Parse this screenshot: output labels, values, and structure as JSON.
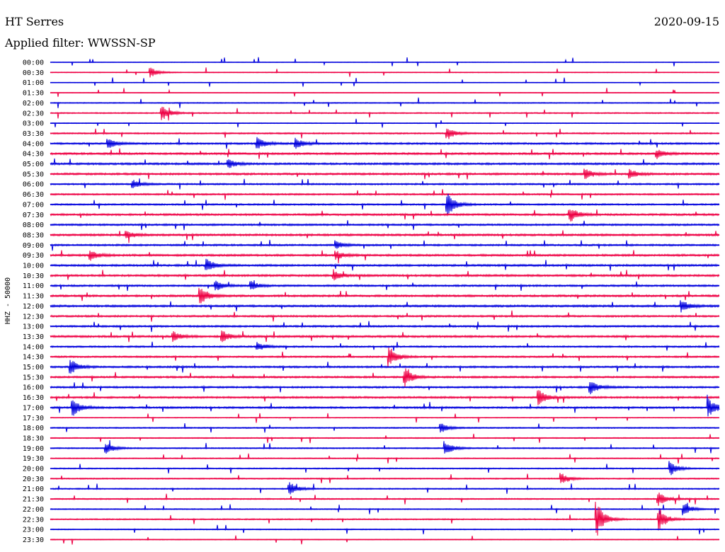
{
  "header": {
    "station": "HT Serres",
    "date": "2020-09-15",
    "filter": "Applied filter: WWSSN-SP"
  },
  "chart_data": {
    "type": "line",
    "title": "HT Serres",
    "subtitle": "Applied filter: WWSSN-SP",
    "ylabel": "HHZ - 50000",
    "xlabel": "",
    "grid": false,
    "legend": "none",
    "colors": [
      "#0000dd",
      "#ee0044"
    ],
    "row_labels": [
      "00:00",
      "00:30",
      "01:00",
      "01:30",
      "02:00",
      "02:30",
      "03:00",
      "03:30",
      "04:00",
      "04:30",
      "05:00",
      "05:30",
      "06:00",
      "06:30",
      "07:00",
      "07:30",
      "08:00",
      "08:30",
      "09:00",
      "09:30",
      "10:00",
      "10:30",
      "11:00",
      "11:30",
      "12:00",
      "12:30",
      "13:00",
      "13:30",
      "14:00",
      "14:30",
      "15:00",
      "15:30",
      "16:00",
      "16:30",
      "17:00",
      "17:30",
      "18:00",
      "18:30",
      "19:00",
      "19:30",
      "20:00",
      "20:30",
      "21:00",
      "21:30",
      "22:00",
      "22:30",
      "23:00",
      "23:30"
    ],
    "noise_level": [
      0.3,
      0.4,
      0.3,
      0.3,
      0.5,
      0.6,
      0.4,
      0.7,
      0.9,
      1.0,
      1.0,
      1.0,
      0.8,
      0.8,
      0.8,
      1.0,
      0.9,
      1.0,
      0.9,
      1.0,
      1.0,
      1.0,
      0.9,
      1.0,
      1.0,
      0.9,
      0.9,
      1.0,
      0.8,
      0.8,
      0.9,
      0.9,
      0.9,
      0.9,
      0.9,
      0.4,
      0.6,
      0.5,
      0.6,
      0.5,
      0.6,
      0.6,
      0.6,
      0.6,
      0.5,
      0.6,
      0.5,
      0.4
    ],
    "events": [
      {
        "row": 1,
        "minute": 4.5,
        "amplitude": 0.9
      },
      {
        "row": 5,
        "minute": 5.0,
        "amplitude": 1.4
      },
      {
        "row": 7,
        "minute": 17.8,
        "amplitude": 1.1
      },
      {
        "row": 8,
        "minute": 2.6,
        "amplitude": 0.9
      },
      {
        "row": 8,
        "minute": 9.3,
        "amplitude": 1.0
      },
      {
        "row": 8,
        "minute": 11.0,
        "amplitude": 1.0
      },
      {
        "row": 9,
        "minute": 27.2,
        "amplitude": 0.8
      },
      {
        "row": 10,
        "minute": 8.0,
        "amplitude": 0.8
      },
      {
        "row": 11,
        "minute": 24.0,
        "amplitude": 0.9
      },
      {
        "row": 11,
        "minute": 26.0,
        "amplitude": 0.8
      },
      {
        "row": 12,
        "minute": 3.7,
        "amplitude": 0.8
      },
      {
        "row": 14,
        "minute": 17.8,
        "amplitude": 2.2
      },
      {
        "row": 15,
        "minute": 23.3,
        "amplitude": 1.4
      },
      {
        "row": 17,
        "minute": 3.4,
        "amplitude": 0.8
      },
      {
        "row": 18,
        "minute": 12.8,
        "amplitude": 0.8
      },
      {
        "row": 19,
        "minute": 1.8,
        "amplitude": 0.9
      },
      {
        "row": 19,
        "minute": 12.8,
        "amplitude": 0.8
      },
      {
        "row": 20,
        "minute": 7.0,
        "amplitude": 1.1
      },
      {
        "row": 21,
        "minute": 12.7,
        "amplitude": 0.9
      },
      {
        "row": 22,
        "minute": 7.4,
        "amplitude": 1.0
      },
      {
        "row": 22,
        "minute": 9.0,
        "amplitude": 0.8
      },
      {
        "row": 23,
        "minute": 6.7,
        "amplitude": 1.8
      },
      {
        "row": 24,
        "minute": 28.3,
        "amplitude": 1.0
      },
      {
        "row": 27,
        "minute": 5.5,
        "amplitude": 0.9
      },
      {
        "row": 27,
        "minute": 7.7,
        "amplitude": 1.0
      },
      {
        "row": 28,
        "minute": 9.3,
        "amplitude": 0.8
      },
      {
        "row": 29,
        "minute": 15.2,
        "amplitude": 1.8
      },
      {
        "row": 30,
        "minute": 0.9,
        "amplitude": 1.4
      },
      {
        "row": 31,
        "minute": 15.9,
        "amplitude": 1.6
      },
      {
        "row": 32,
        "minute": 24.2,
        "amplitude": 1.5
      },
      {
        "row": 33,
        "minute": 21.9,
        "amplitude": 1.4
      },
      {
        "row": 34,
        "minute": 1.0,
        "amplitude": 1.6
      },
      {
        "row": 34,
        "minute": 29.5,
        "amplitude": 1.7
      },
      {
        "row": 36,
        "minute": 17.5,
        "amplitude": 1.0
      },
      {
        "row": 38,
        "minute": 2.5,
        "amplitude": 1.0
      },
      {
        "row": 38,
        "minute": 17.7,
        "amplitude": 1.3
      },
      {
        "row": 40,
        "minute": 27.8,
        "amplitude": 1.3
      },
      {
        "row": 41,
        "minute": 22.9,
        "amplitude": 1.1
      },
      {
        "row": 42,
        "minute": 10.7,
        "amplitude": 1.3
      },
      {
        "row": 43,
        "minute": 27.3,
        "amplitude": 1.2
      },
      {
        "row": 44,
        "minute": 28.4,
        "amplitude": 1.2
      },
      {
        "row": 45,
        "minute": 24.5,
        "amplitude": 3.2
      },
      {
        "row": 45,
        "minute": 27.3,
        "amplitude": 2.0
      }
    ]
  }
}
